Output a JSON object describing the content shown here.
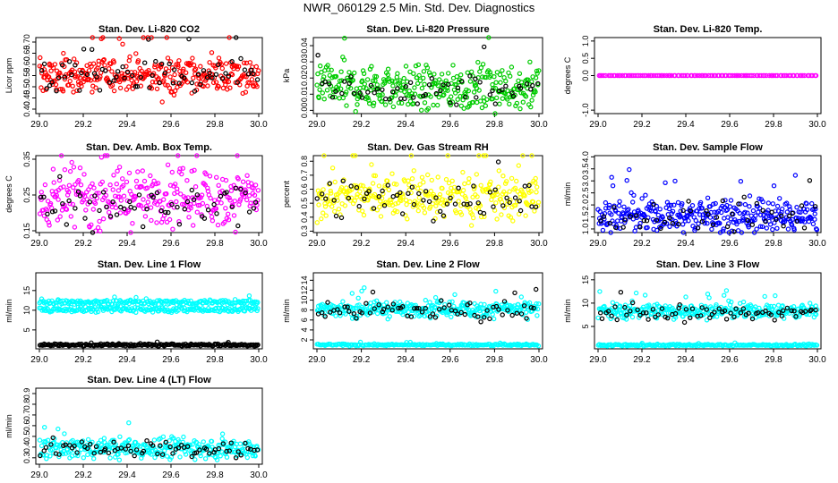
{
  "title": "NWR_060129  2.5 Min. Std. Dev. Diagnostics",
  "colors": {
    "red": "#ff0000",
    "green": "#00cc00",
    "magenta": "#ff00ff",
    "yellow": "#ffff00",
    "blue": "#0000ff",
    "cyan": "#00ffff",
    "black": "#000000"
  },
  "chart_data": [
    {
      "type": "scatter",
      "title": "Stan. Dev. Li-820 CO2",
      "ylabel": "Licor ppm",
      "xlim": [
        29.0,
        30.0
      ],
      "ylim": [
        0.38,
        0.72
      ],
      "xticks": [
        "29.0",
        "29.2",
        "29.4",
        "29.6",
        "29.8",
        "30.0"
      ],
      "yticks": [
        "0.40",
        "0.45",
        "0.50",
        "0.55",
        "0.60",
        "0.65",
        "0.70"
      ],
      "series": [
        {
          "name": "main",
          "color": "#ff0000",
          "n": 340,
          "center": 0.55,
          "spread": 0.04
        },
        {
          "name": "black",
          "color": "#000000",
          "n": 70,
          "center": 0.54,
          "spread": 0.035
        }
      ]
    },
    {
      "type": "scatter",
      "title": "Stan. Dev. Li-820 Pressure",
      "ylabel": "kPa",
      "xlim": [
        29.0,
        30.0
      ],
      "ylim": [
        -0.002,
        0.045
      ],
      "xticks": [
        "29.0",
        "29.2",
        "29.4",
        "29.6",
        "29.8",
        "30.0"
      ],
      "yticks": [
        "0.00",
        "0.01",
        "0.02",
        "0.03",
        "0.04"
      ],
      "series": [
        {
          "name": "main",
          "color": "#00cc00",
          "n": 340,
          "center": 0.014,
          "spread": 0.007
        },
        {
          "name": "black",
          "color": "#000000",
          "n": 60,
          "center": 0.012,
          "spread": 0.005
        }
      ]
    },
    {
      "type": "scatter",
      "title": "Stan. Dev. Li-820 Temp.",
      "ylabel": "degrees C",
      "xlim": [
        29.0,
        30.0
      ],
      "ylim": [
        -1.1,
        1.1
      ],
      "xticks": [
        "29.0",
        "29.2",
        "29.4",
        "29.6",
        "29.8",
        "30.0"
      ],
      "yticks": [
        "-1.0",
        "0.0",
        "0.5",
        "1.0"
      ],
      "series": [
        {
          "name": "main",
          "color": "#ff00ff",
          "n": 120,
          "center": 0.0,
          "spread": 0.0
        }
      ]
    },
    {
      "type": "scatter",
      "title": "Stan. Dev. Amb. Box Temp.",
      "ylabel": "degrees C",
      "xlim": [
        29.0,
        30.0
      ],
      "ylim": [
        0.145,
        0.36
      ],
      "xticks": [
        "29.0",
        "29.2",
        "29.4",
        "29.6",
        "29.8",
        "30.0"
      ],
      "yticks": [
        "0.15",
        "0.25",
        "0.35"
      ],
      "series": [
        {
          "name": "main",
          "color": "#ff00ff",
          "n": 320,
          "center": 0.245,
          "spread": 0.04
        },
        {
          "name": "black",
          "color": "#000000",
          "n": 60,
          "center": 0.21,
          "spread": 0.03
        }
      ]
    },
    {
      "type": "scatter",
      "title": "Stan. Dev. Gas Stream RH",
      "ylabel": "percent",
      "xlim": [
        29.0,
        30.0
      ],
      "ylim": [
        0.29,
        0.84
      ],
      "xticks": [
        "29.0",
        "29.2",
        "29.4",
        "29.6",
        "29.8",
        "30.0"
      ],
      "yticks": [
        "0.3",
        "0.4",
        "0.5",
        "0.6",
        "0.7",
        "0.8"
      ],
      "series": [
        {
          "name": "main",
          "color": "#ffff00",
          "n": 320,
          "center": 0.55,
          "spread": 0.08
        },
        {
          "name": "black",
          "color": "#000000",
          "n": 60,
          "center": 0.53,
          "spread": 0.07
        }
      ]
    },
    {
      "type": "scatter",
      "title": "Stan. Dev. Sample Flow",
      "ylabel": "ml/min",
      "xlim": [
        29.0,
        30.0
      ],
      "ylim": [
        0.85,
        4.05
      ],
      "xticks": [
        "29.0",
        "29.2",
        "29.4",
        "29.6",
        "29.8",
        "30.0"
      ],
      "yticks": [
        "1.0",
        "1.5",
        "2.0",
        "2.5",
        "3.0",
        "3.5",
        "4.0"
      ],
      "series": [
        {
          "name": "main",
          "color": "#0000ff",
          "n": 340,
          "center": 1.55,
          "spread": 0.35
        },
        {
          "name": "black",
          "color": "#000000",
          "n": 50,
          "center": 1.5,
          "spread": 0.3
        }
      ]
    },
    {
      "type": "scatter",
      "title": "Stan. Dev. Line 1 Flow",
      "ylabel": "ml/min",
      "xlim": [
        29.0,
        30.0
      ],
      "ylim": [
        0.2,
        19.5
      ],
      "xticks": [
        "29.0",
        "29.2",
        "29.4",
        "29.6",
        "29.8",
        "30.0"
      ],
      "yticks": [
        "5",
        "10",
        "15"
      ],
      "series": [
        {
          "name": "upper",
          "color": "#00ffff",
          "n": 200,
          "center": 12.0,
          "spread": 0.35
        },
        {
          "name": "middle",
          "color": "#00ffff",
          "n": 200,
          "center": 10.2,
          "spread": 0.35
        },
        {
          "name": "low",
          "color": "#000000",
          "n": 220,
          "center": 1.2,
          "spread": 0.15
        }
      ]
    },
    {
      "type": "scatter",
      "title": "Stan. Dev. Line 2 Flow",
      "ylabel": "ml/min",
      "xlim": [
        29.0,
        30.0
      ],
      "ylim": [
        0.2,
        15.5
      ],
      "xticks": [
        "29.0",
        "29.2",
        "29.4",
        "29.6",
        "29.8",
        "30.0"
      ],
      "yticks": [
        "2",
        "4",
        "6",
        "8",
        "10",
        "12",
        "14"
      ],
      "series": [
        {
          "name": "main",
          "color": "#00ffff",
          "n": 320,
          "center": 8.2,
          "spread": 0.8
        },
        {
          "name": "low",
          "color": "#00ffff",
          "n": 200,
          "center": 1.0,
          "spread": 0.1
        },
        {
          "name": "black",
          "color": "#000000",
          "n": 70,
          "center": 8.0,
          "spread": 0.9
        }
      ]
    },
    {
      "type": "scatter",
      "title": "Stan. Dev. Line 3 Flow",
      "ylabel": "ml/min",
      "xlim": [
        29.0,
        30.0
      ],
      "ylim": [
        0.2,
        16.5
      ],
      "xticks": [
        "29.0",
        "29.2",
        "29.4",
        "29.6",
        "29.8",
        "30.0"
      ],
      "yticks": [
        "5",
        "10",
        "15"
      ],
      "series": [
        {
          "name": "main",
          "color": "#00ffff",
          "n": 320,
          "center": 8.3,
          "spread": 0.8
        },
        {
          "name": "low",
          "color": "#00ffff",
          "n": 200,
          "center": 1.0,
          "spread": 0.1
        },
        {
          "name": "black",
          "color": "#000000",
          "n": 70,
          "center": 7.8,
          "spread": 0.9
        }
      ]
    },
    {
      "type": "scatter",
      "title": "Stan. Dev. Line 4 (LT) Flow",
      "ylabel": "ml/min",
      "xlim": [
        29.0,
        30.0
      ],
      "ylim": [
        0.24,
        0.95
      ],
      "xticks": [
        "29.0",
        "29.2",
        "29.4",
        "29.6",
        "29.8",
        "30.0"
      ],
      "yticks": [
        "0.3",
        "0.4",
        "0.5",
        "0.6",
        "0.7",
        "0.8",
        "0.9"
      ],
      "series": [
        {
          "name": "main",
          "color": "#00ffff",
          "n": 320,
          "center": 0.39,
          "spread": 0.05
        },
        {
          "name": "black",
          "color": "#000000",
          "n": 70,
          "center": 0.38,
          "spread": 0.04
        }
      ]
    }
  ]
}
